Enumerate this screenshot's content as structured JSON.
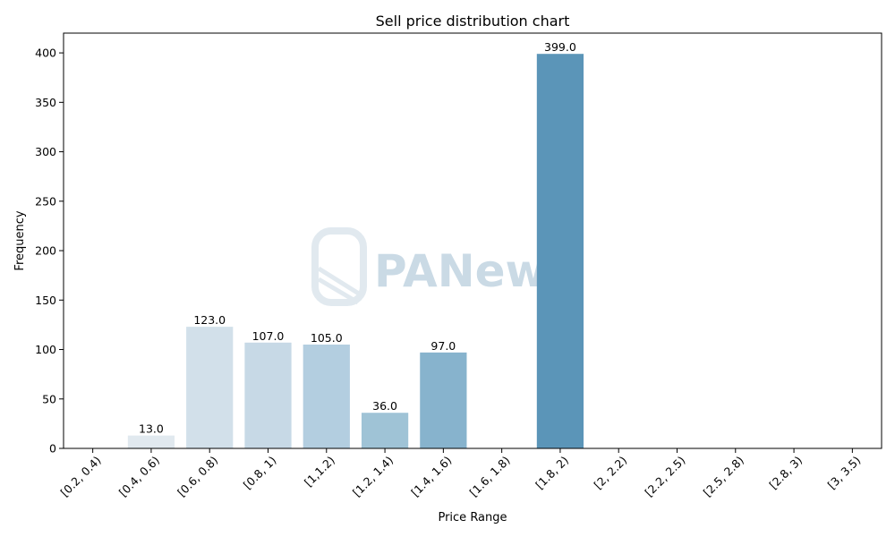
{
  "chart_data": {
    "type": "bar",
    "title": "Sell price distribution chart",
    "xlabel": "Price Range",
    "ylabel": "Frequency",
    "categories": [
      "[0.2, 0.4)",
      "[0.4, 0.6)",
      "[0.6, 0.8)",
      "[0.8, 1)",
      "[1,1.2)",
      "[1.2, 1.4)",
      "[1.4, 1.6)",
      "[1.6, 1.8)",
      "[1.8, 2)",
      "[2, 2.2)",
      "[2.2, 2.5)",
      "[2.5, 2.8)",
      "[2.8, 3)",
      "[3, 3.5)"
    ],
    "values": [
      0,
      13,
      123,
      107,
      105,
      36,
      97,
      0,
      399,
      0,
      0,
      0,
      0,
      0
    ],
    "data_labels": [
      "",
      "13.0",
      "123.0",
      "107.0",
      "105.0",
      "36.0",
      "97.0",
      "",
      "399.0",
      "",
      "",
      "",
      "",
      ""
    ],
    "bar_colors": [
      "#eef3f7",
      "#e1e9ef",
      "#d2e0ea",
      "#c7d9e6",
      "#b3cee0",
      "#9fc3d6",
      "#87b3cd",
      "#6fa3c4",
      "#5b95b8",
      "#4f87ad",
      "#4a82a8",
      "#457ca3",
      "#40769e",
      "#3b7099"
    ],
    "ylim": [
      0,
      420
    ],
    "yticks": [
      0,
      50,
      100,
      150,
      200,
      250,
      300,
      350,
      400
    ],
    "grid": false,
    "legend": "none"
  },
  "watermark": {
    "text": "PANews",
    "icon": "panews-logo-icon"
  }
}
